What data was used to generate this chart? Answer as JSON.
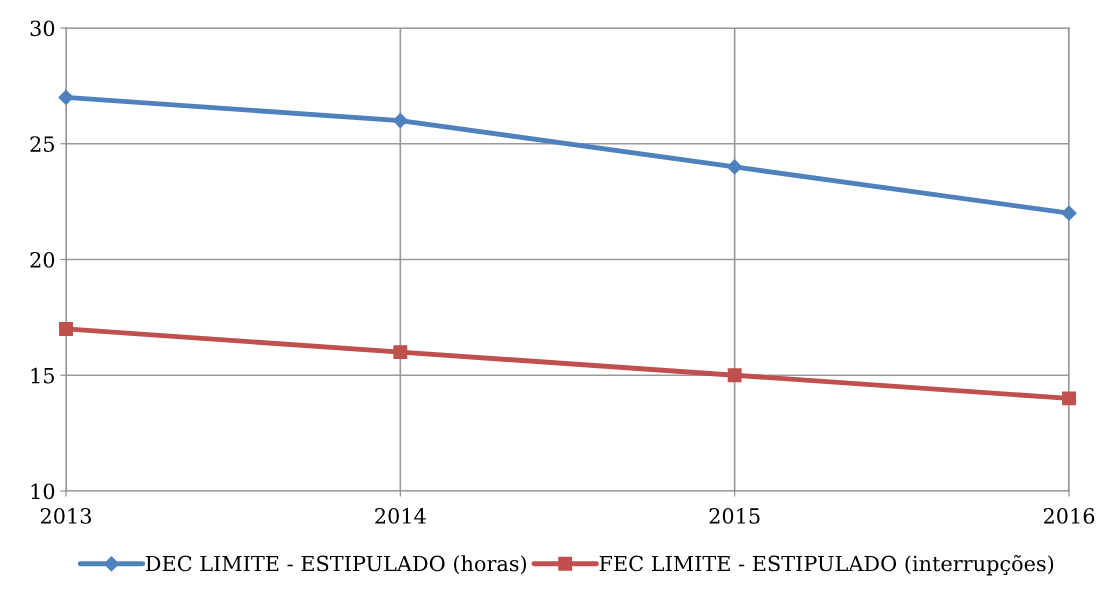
{
  "chart_data": {
    "type": "line",
    "x": [
      2013,
      2014,
      2015,
      2016
    ],
    "series": [
      {
        "name": "DEC LIMITE - ESTIPULADO (horas)",
        "color": "#4f81bd",
        "marker": "diamond",
        "values": [
          27,
          26,
          24,
          22
        ]
      },
      {
        "name": "FEC LIMITE - ESTIPULADO (interrupções)",
        "color": "#c0504d",
        "marker": "square",
        "values": [
          17,
          16,
          15,
          14
        ]
      }
    ],
    "xlim": [
      2013,
      2016
    ],
    "xticks": [
      2013,
      2014,
      2015,
      2016
    ],
    "ylim": [
      10,
      30
    ],
    "yticks": [
      10,
      15,
      20,
      25,
      30
    ],
    "grid": true,
    "legend": "bottom",
    "line_style": "solid"
  }
}
